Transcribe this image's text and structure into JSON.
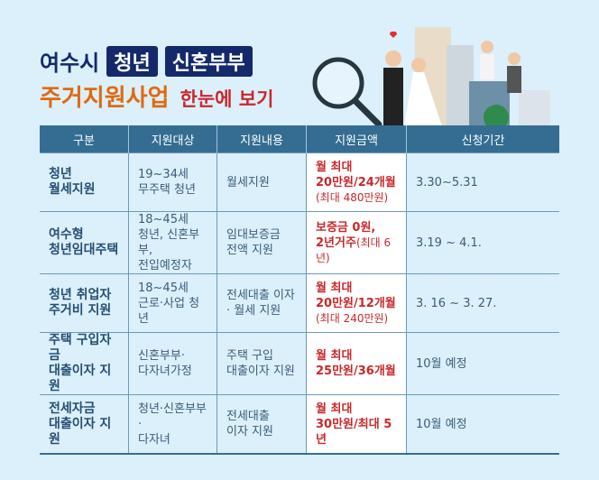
{
  "title": {
    "city": "여수시",
    "tag1": "청년",
    "tag2": "신혼부부",
    "main": "주거지원사업",
    "sub": "한눈에 보기"
  },
  "table": {
    "headers": [
      "구분",
      "지원대상",
      "지원내용",
      "지원금액",
      "신청기간"
    ],
    "rows": [
      {
        "name": [
          "청년",
          "월세지원"
        ],
        "target": [
          "19~34세",
          "무주택 청년"
        ],
        "content": [
          "월세지원"
        ],
        "amount": [
          "월 최대",
          "20만원/24개월"
        ],
        "amount_note": "(최대 480만원)",
        "period": "3.30~5.31"
      },
      {
        "name": [
          "여수형",
          "청년임대주택"
        ],
        "target": [
          "18~45세",
          "청년, 신혼부부,",
          "전입예정자"
        ],
        "content": [
          "임대보증금",
          "전액 지원"
        ],
        "amount": [
          "보증금 0원,",
          "2년거주"
        ],
        "amount_note": "(최대 6년)",
        "period": "3.19 ~ 4.1."
      },
      {
        "name": [
          "청년 취업자",
          "주거비 지원"
        ],
        "target": [
          "18~45세",
          "근로·사업 청년"
        ],
        "content": [
          "전세대출 이자",
          "· 월세 지원"
        ],
        "amount": [
          "월 최대",
          "20만원/12개월"
        ],
        "amount_note": "(최대 240만원)",
        "period": "3. 16 ~ 3. 27."
      },
      {
        "name": [
          "주택 구입자금",
          "대출이자 지원"
        ],
        "target": [
          "신혼부부·",
          "다자녀가정"
        ],
        "content": [
          "주택 구입",
          "대출이자 지원"
        ],
        "amount": [
          "월 최대",
          "25만원/36개월"
        ],
        "amount_note": "",
        "period": "10월 예정"
      },
      {
        "name": [
          "전세자금",
          "대출이자 지원"
        ],
        "target": [
          "청년·신혼부부·",
          "다자녀"
        ],
        "content": [
          "전세대출",
          "이자 지원"
        ],
        "amount": [
          "월 최대",
          "30만원/최대 5년"
        ],
        "amount_note": "",
        "period": "10월 예정"
      }
    ]
  },
  "colors": {
    "navy": "#14296b",
    "orange": "#e06a10",
    "red": "#c8282c",
    "header": "#356d92",
    "background": "#dcf0fb"
  }
}
